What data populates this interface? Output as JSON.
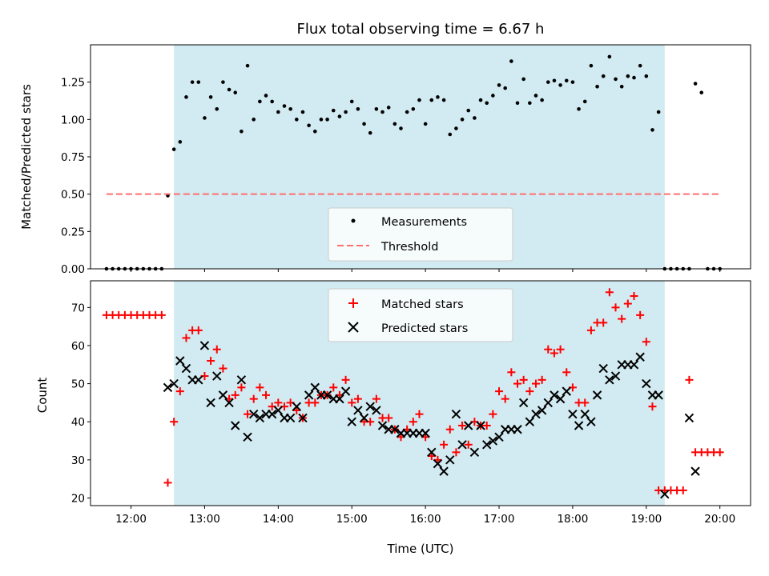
{
  "chart_data": [
    {
      "type": "scatter",
      "title": "Flux total observing time = 6.67 h",
      "xlabel": "",
      "ylabel": "Matched/Predicted stars",
      "xlim": [
        "11:27",
        "20:25"
      ],
      "ylim": [
        0,
        1.5
      ],
      "xticks": [
        "12:00",
        "13:00",
        "14:00",
        "15:00",
        "16:00",
        "17:00",
        "18:00",
        "19:00",
        "20:00"
      ],
      "yticks": [
        "0.00",
        "0.25",
        "0.50",
        "0.75",
        "1.00",
        "1.25"
      ],
      "grid": false,
      "legend_position": "lower-center",
      "shaded_span": {
        "start": "12:35",
        "end": "19:15",
        "color": "#add8e6"
      },
      "series": [
        {
          "name": "Measurements",
          "marker": "dot",
          "color": "#000000",
          "x": [
            "11:40",
            "11:45",
            "11:50",
            "11:55",
            "12:00",
            "12:05",
            "12:10",
            "12:15",
            "12:20",
            "12:25",
            "12:30",
            "12:35",
            "12:40",
            "12:45",
            "12:50",
            "12:55",
            "13:00",
            "13:05",
            "13:10",
            "13:15",
            "13:20",
            "13:25",
            "13:30",
            "13:35",
            "13:40",
            "13:45",
            "13:50",
            "13:55",
            "14:00",
            "14:05",
            "14:10",
            "14:15",
            "14:20",
            "14:25",
            "14:30",
            "14:35",
            "14:40",
            "14:45",
            "14:50",
            "14:55",
            "15:00",
            "15:05",
            "15:10",
            "15:15",
            "15:20",
            "15:25",
            "15:30",
            "15:35",
            "15:40",
            "15:45",
            "15:50",
            "15:55",
            "16:00",
            "16:05",
            "16:10",
            "16:15",
            "16:20",
            "16:25",
            "16:30",
            "16:35",
            "16:40",
            "16:45",
            "16:50",
            "16:55",
            "17:00",
            "17:05",
            "17:10",
            "17:15",
            "17:20",
            "17:25",
            "17:30",
            "17:35",
            "17:40",
            "17:45",
            "17:50",
            "17:55",
            "18:00",
            "18:05",
            "18:10",
            "18:15",
            "18:20",
            "18:25",
            "18:30",
            "18:35",
            "18:40",
            "18:45",
            "18:50",
            "18:55",
            "19:00",
            "19:05",
            "19:10",
            "19:15",
            "19:20",
            "19:25",
            "19:30",
            "19:35",
            "19:40",
            "19:45",
            "19:50",
            "19:55",
            "20:00"
          ],
          "values": [
            0,
            0,
            0,
            0,
            0,
            0,
            0,
            0,
            0,
            0,
            0.49,
            0.8,
            0.85,
            1.15,
            1.25,
            1.25,
            1.01,
            1.15,
            1.07,
            1.25,
            1.2,
            1.18,
            0.92,
            1.36,
            1.0,
            1.12,
            1.16,
            1.12,
            1.05,
            1.09,
            1.07,
            1.0,
            1.05,
            0.96,
            0.92,
            1.0,
            1.0,
            1.06,
            1.02,
            1.05,
            1.12,
            1.07,
            0.97,
            0.91,
            1.07,
            1.05,
            1.08,
            0.97,
            0.94,
            1.05,
            1.07,
            1.13,
            0.97,
            1.13,
            1.15,
            1.13,
            0.9,
            0.94,
            1.0,
            1.06,
            1.01,
            1.13,
            1.11,
            1.16,
            1.23,
            1.21,
            1.39,
            1.11,
            1.27,
            1.11,
            1.16,
            1.13,
            1.25,
            1.26,
            1.23,
            1.26,
            1.25,
            1.07,
            1.12,
            1.36,
            1.22,
            1.29,
            1.42,
            1.27,
            1.22,
            1.29,
            1.28,
            1.36,
            1.29,
            0.93,
            1.05,
            0,
            0,
            0,
            0,
            0,
            1.24,
            1.18,
            0,
            0,
            0
          ]
        },
        {
          "name": "Threshold",
          "style": "dashed",
          "color": "#ff6f6f",
          "x": [
            "11:40",
            "20:00"
          ],
          "values": [
            0.5,
            0.5
          ]
        }
      ]
    },
    {
      "type": "scatter",
      "title": "",
      "xlabel": "Time (UTC)",
      "ylabel": "Count",
      "xlim": [
        "11:27",
        "20:25"
      ],
      "ylim": [
        18,
        77
      ],
      "xticks": [
        "12:00",
        "13:00",
        "14:00",
        "15:00",
        "16:00",
        "17:00",
        "18:00",
        "19:00",
        "20:00"
      ],
      "yticks": [
        "20",
        "30",
        "40",
        "50",
        "60",
        "70"
      ],
      "grid": false,
      "legend_position": "upper-center",
      "shaded_span": {
        "start": "12:35",
        "end": "19:15",
        "color": "#add8e6"
      },
      "series": [
        {
          "name": "Matched stars",
          "marker": "plus",
          "color": "#ff0000",
          "x": [
            "11:40",
            "11:45",
            "11:50",
            "11:55",
            "12:00",
            "12:05",
            "12:10",
            "12:15",
            "12:20",
            "12:25",
            "12:30",
            "12:35",
            "12:40",
            "12:45",
            "12:50",
            "12:55",
            "13:00",
            "13:05",
            "13:10",
            "13:15",
            "13:20",
            "13:25",
            "13:30",
            "13:35",
            "13:40",
            "13:45",
            "13:50",
            "13:55",
            "14:00",
            "14:05",
            "14:10",
            "14:15",
            "14:20",
            "14:25",
            "14:30",
            "14:35",
            "14:40",
            "14:45",
            "14:50",
            "14:55",
            "15:00",
            "15:05",
            "15:10",
            "15:15",
            "15:20",
            "15:25",
            "15:30",
            "15:35",
            "15:40",
            "15:45",
            "15:50",
            "15:55",
            "16:00",
            "16:05",
            "16:10",
            "16:15",
            "16:20",
            "16:25",
            "16:30",
            "16:35",
            "16:40",
            "16:45",
            "16:50",
            "16:55",
            "17:00",
            "17:05",
            "17:10",
            "17:15",
            "17:20",
            "17:25",
            "17:30",
            "17:35",
            "17:40",
            "17:45",
            "17:50",
            "17:55",
            "18:00",
            "18:05",
            "18:10",
            "18:15",
            "18:20",
            "18:25",
            "18:30",
            "18:35",
            "18:40",
            "18:45",
            "18:50",
            "18:55",
            "19:00",
            "19:05",
            "19:10",
            "19:15",
            "19:20",
            "19:25",
            "19:30",
            "19:35",
            "19:40",
            "19:45",
            "19:50",
            "19:55",
            "20:00"
          ],
          "values": [
            68,
            68,
            68,
            68,
            68,
            68,
            68,
            68,
            68,
            68,
            24,
            40,
            48,
            62,
            64,
            64,
            52,
            56,
            59,
            54,
            46,
            47,
            49,
            42,
            46,
            49,
            47,
            44,
            45,
            44,
            45,
            43,
            41,
            45,
            45,
            47,
            47,
            49,
            47,
            51,
            45,
            46,
            40,
            40,
            46,
            41,
            41,
            38,
            36,
            38,
            40,
            42,
            36,
            31,
            30,
            34,
            38,
            32,
            39,
            34,
            40,
            39,
            39,
            42,
            48,
            46,
            53,
            50,
            51,
            48,
            50,
            51,
            59,
            58,
            59,
            53,
            49,
            45,
            45,
            64,
            66,
            66,
            74,
            70,
            67,
            71,
            73,
            68,
            61,
            44,
            22,
            22,
            22,
            22,
            22,
            51,
            32,
            32,
            32,
            32,
            32
          ]
        },
        {
          "name": "Predicted stars",
          "marker": "x",
          "color": "#000000",
          "x": [
            "12:30",
            "12:35",
            "12:40",
            "12:45",
            "12:50",
            "12:55",
            "13:00",
            "13:05",
            "13:10",
            "13:15",
            "13:20",
            "13:25",
            "13:30",
            "13:35",
            "13:40",
            "13:45",
            "13:50",
            "13:55",
            "14:00",
            "14:05",
            "14:10",
            "14:15",
            "14:20",
            "14:25",
            "14:30",
            "14:35",
            "14:40",
            "14:45",
            "14:50",
            "14:55",
            "15:00",
            "15:05",
            "15:10",
            "15:15",
            "15:20",
            "15:25",
            "15:30",
            "15:35",
            "15:40",
            "15:45",
            "15:50",
            "15:55",
            "16:00",
            "16:05",
            "16:10",
            "16:15",
            "16:20",
            "16:25",
            "16:30",
            "16:35",
            "16:40",
            "16:45",
            "16:50",
            "16:55",
            "17:00",
            "17:05",
            "17:10",
            "17:15",
            "17:20",
            "17:25",
            "17:30",
            "17:35",
            "17:40",
            "17:45",
            "17:50",
            "17:55",
            "18:00",
            "18:05",
            "18:10",
            "18:15",
            "18:20",
            "18:25",
            "18:30",
            "18:35",
            "18:40",
            "18:45",
            "18:50",
            "18:55",
            "19:00",
            "19:05",
            "19:10",
            "19:15",
            "19:35",
            "19:40"
          ],
          "values": [
            49,
            50,
            56,
            54,
            51,
            51,
            60,
            45,
            52,
            47,
            45,
            39,
            51,
            36,
            42,
            41,
            42,
            42,
            43,
            41,
            41,
            44,
            41,
            47,
            49,
            47,
            47,
            46,
            46,
            48,
            40,
            43,
            41,
            44,
            43,
            39,
            38,
            38,
            37,
            37,
            37,
            37,
            37,
            32,
            29,
            27,
            30,
            42,
            34,
            39,
            32,
            39,
            34,
            35,
            36,
            38,
            38,
            38,
            45,
            40,
            42,
            43,
            45,
            47,
            46,
            48,
            42,
            39,
            42,
            40,
            47,
            54,
            51,
            52,
            55,
            55,
            55,
            57,
            50,
            47,
            47,
            21,
            41,
            27
          ]
        }
      ]
    }
  ]
}
